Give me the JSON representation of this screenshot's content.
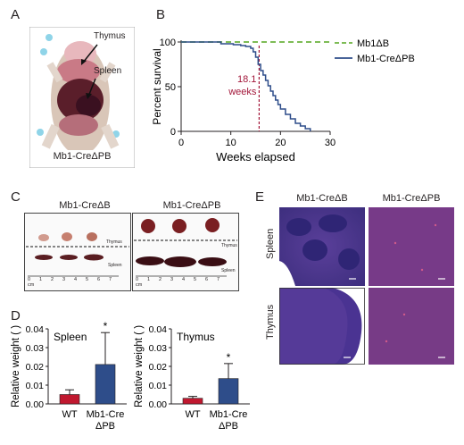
{
  "panels": {
    "A": {
      "letter": "A",
      "labels": {
        "thymus": "Thymus",
        "spleen": "Spleen"
      },
      "caption": "Mb1-CreΔPB"
    },
    "B": {
      "letter": "B"
    },
    "C": {
      "letter": "C",
      "left_title": "Mb1-CreΔB",
      "right_title": "Mb1-CreΔPB",
      "thymus_label": "Thymus",
      "spleen_label": "Spleen",
      "ruler_numbers": [
        "0",
        "1",
        "2",
        "3",
        "4",
        "5",
        "6",
        "7"
      ],
      "ruler_unit": "cm"
    },
    "D": {
      "letter": "D"
    },
    "E": {
      "letter": "E",
      "col1": "Mb1-CreΔB",
      "col2": "Mb1-CreΔPB",
      "row1": "Spleen",
      "row2": "Thymus"
    }
  },
  "colors": {
    "blue": "#2e4d8a",
    "green": "#6cb33e",
    "red": "#c0182f",
    "annotation": "#a3173a"
  },
  "chart_data": [
    {
      "id": "survival",
      "type": "line",
      "xlabel": "Weeks elapsed",
      "ylabel": "Percent survival",
      "xlim": [
        0,
        30
      ],
      "ylim": [
        0,
        100
      ],
      "xticks": [
        0,
        10,
        20,
        30
      ],
      "yticks": [
        0,
        50,
        100
      ],
      "legend_position": "top-right",
      "series": [
        {
          "name": "Mb1ΔB",
          "style": "dashed",
          "color": "#6cb33e",
          "x": [
            0,
            30
          ],
          "y": [
            100,
            100
          ]
        },
        {
          "name": "Mb1-CreΔPB",
          "style": "step",
          "color": "#2e4d8a",
          "x": [
            0,
            8,
            10.5,
            12,
            13,
            14,
            14.5,
            15,
            15.5,
            16,
            16.5,
            17,
            17.5,
            18,
            18.5,
            19,
            19.5,
            20,
            21,
            22,
            23,
            24,
            25,
            26
          ],
          "y": [
            100,
            98,
            97,
            96,
            95,
            93,
            89,
            83,
            75,
            68,
            63,
            57,
            51,
            45,
            40,
            35,
            30,
            25,
            19,
            14,
            9,
            6,
            3,
            0
          ]
        }
      ],
      "annotation": {
        "x": 15.7,
        "text_line1": "18.1",
        "text_line2": "weeks"
      }
    },
    {
      "id": "spleen",
      "type": "bar",
      "title": "Spleen",
      "ylabel": "Relative weight ( )",
      "categories": [
        "WT",
        "Mb1-Cre ΔPB"
      ],
      "values": [
        0.005,
        0.021
      ],
      "errors": [
        0.0025,
        0.017
      ],
      "colors": [
        "#c0182f",
        "#2e4d8a"
      ],
      "significance": [
        "",
        "*"
      ],
      "ylim": [
        0,
        0.04
      ],
      "yticks": [
        "0.00",
        "0.01",
        "0.02",
        "0.03",
        "0.04"
      ]
    },
    {
      "id": "thymus",
      "type": "bar",
      "title": "Thymus",
      "ylabel": "Relative weight ( )",
      "categories": [
        "WT",
        "Mb1-Cre ΔPB"
      ],
      "values": [
        0.003,
        0.0135
      ],
      "errors": [
        0.001,
        0.008
      ],
      "colors": [
        "#c0182f",
        "#2e4d8a"
      ],
      "significance": [
        "",
        "*"
      ],
      "ylim": [
        0,
        0.04
      ],
      "yticks": [
        "0.00",
        "0.01",
        "0.02",
        "0.03",
        "0.04"
      ]
    }
  ]
}
